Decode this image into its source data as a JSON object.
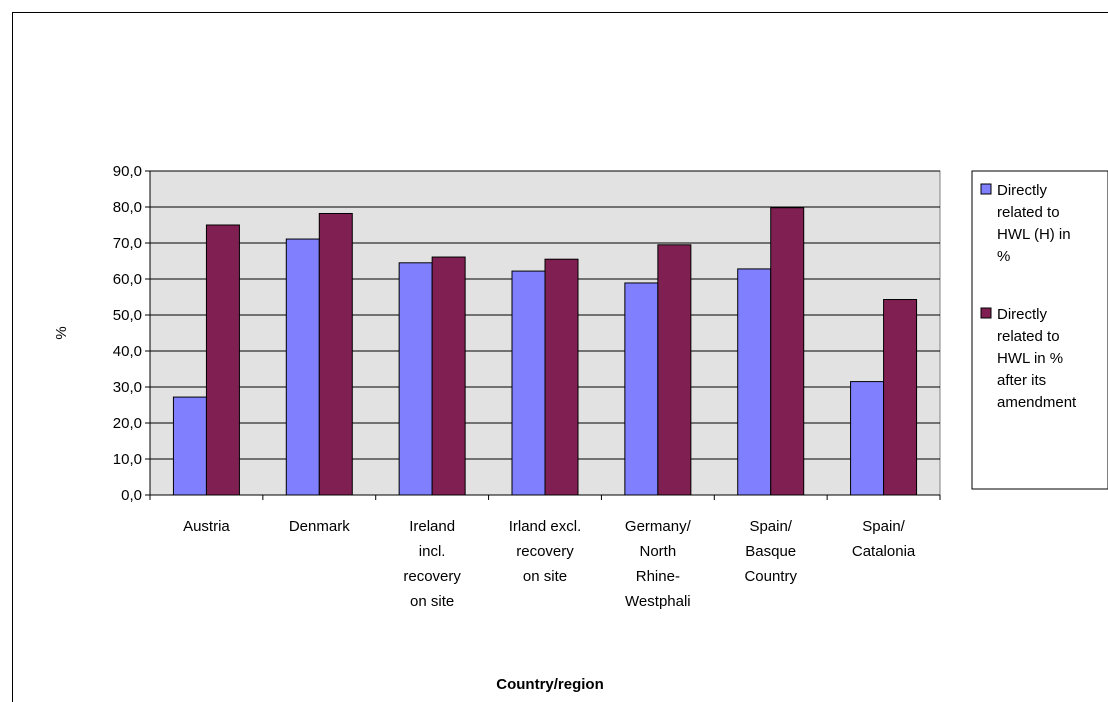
{
  "chart_data": {
    "type": "bar",
    "title": "",
    "xlabel": "Country/region",
    "ylabel": "%",
    "ylim": [
      0,
      90
    ],
    "ytick_step": 10,
    "ytick_labels": [
      "0,0",
      "10,0",
      "20,0",
      "30,0",
      "40,0",
      "50,0",
      "60,0",
      "70,0",
      "80,0",
      "90,0"
    ],
    "grid": true,
    "legend_position": "right",
    "categories": [
      [
        "Austria"
      ],
      [
        "Denmark"
      ],
      [
        "Ireland",
        "incl.",
        "recovery",
        "on site"
      ],
      [
        "Irland excl.",
        "recovery",
        "on site"
      ],
      [
        "Germany/",
        "North",
        "Rhine-",
        "Westphali"
      ],
      [
        "Spain/",
        "Basque",
        "Country"
      ],
      [
        "Spain/",
        "Catalonia"
      ]
    ],
    "series": [
      {
        "name": [
          "Directly",
          "related to",
          "HWL (H) in",
          "%"
        ],
        "color": "#8080ff",
        "values": [
          27.2,
          71.1,
          64.5,
          62.2,
          58.9,
          62.8,
          31.5
        ]
      },
      {
        "name": [
          "Directly",
          "related to",
          "HWL in %",
          "after its",
          "amendment"
        ],
        "color": "#801f52",
        "values": [
          75.0,
          78.2,
          66.1,
          65.5,
          69.5,
          79.8,
          54.3
        ]
      }
    ],
    "colors": {
      "plot_bg": "#e2e2e2",
      "axis": "#000000",
      "grid": "#000000"
    }
  }
}
